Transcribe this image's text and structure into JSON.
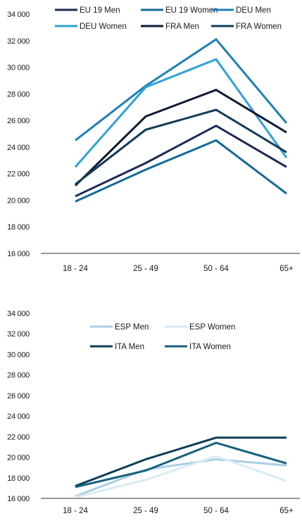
{
  "chart_data": [
    {
      "type": "line",
      "categories": [
        "18 - 24",
        "25 - 49",
        "50 - 64",
        "65+"
      ],
      "yticks": [
        "16 000",
        "18 000",
        "20 000",
        "22 000",
        "24 000",
        "26 000",
        "28 000",
        "30 000",
        "32 000",
        "34 000"
      ],
      "ylim": [
        16000,
        34000
      ],
      "legend_position": "top",
      "series": [
        {
          "name": "EU 19 Men",
          "color": "#1e2b55",
          "values": [
            20300,
            22800,
            25600,
            22500
          ]
        },
        {
          "name": "EU 19 Women",
          "color": "#136a97",
          "values": [
            19900,
            22300,
            24500,
            20500
          ]
        },
        {
          "name": "DEU Men",
          "color": "#1f7fb8",
          "values": [
            24500,
            28600,
            32100,
            25800
          ]
        },
        {
          "name": "DEU Women",
          "color": "#2da2d8",
          "values": [
            22500,
            28500,
            30600,
            23200
          ]
        },
        {
          "name": "FRA Men",
          "color": "#0e1a33",
          "values": [
            21100,
            26300,
            28300,
            25100
          ]
        },
        {
          "name": "FRA Women",
          "color": "#123c57",
          "values": [
            21200,
            25300,
            26800,
            23600
          ]
        }
      ]
    },
    {
      "type": "line",
      "categories": [
        "18 - 24",
        "25 - 49",
        "50 - 64",
        "65+"
      ],
      "yticks": [
        "16 000",
        "18 000",
        "20 000",
        "22 000",
        "24 000",
        "26 000",
        "28 000",
        "30 000",
        "32 000",
        "34 000"
      ],
      "ylim": [
        16000,
        34000
      ],
      "legend_position": "top",
      "series": [
        {
          "name": "ESP Men",
          "color": "#a9cfe3",
          "values": [
            16200,
            18800,
            19800,
            19200
          ]
        },
        {
          "name": "ESP Women",
          "color": "#d9ebf4",
          "values": [
            16100,
            17800,
            20100,
            17700
          ]
        },
        {
          "name": "ITA Men",
          "color": "#0d3e55",
          "values": [
            17200,
            19800,
            21900,
            21900
          ]
        },
        {
          "name": "ITA Women",
          "color": "#15617e",
          "values": [
            17100,
            18700,
            21400,
            19400
          ]
        }
      ]
    }
  ]
}
